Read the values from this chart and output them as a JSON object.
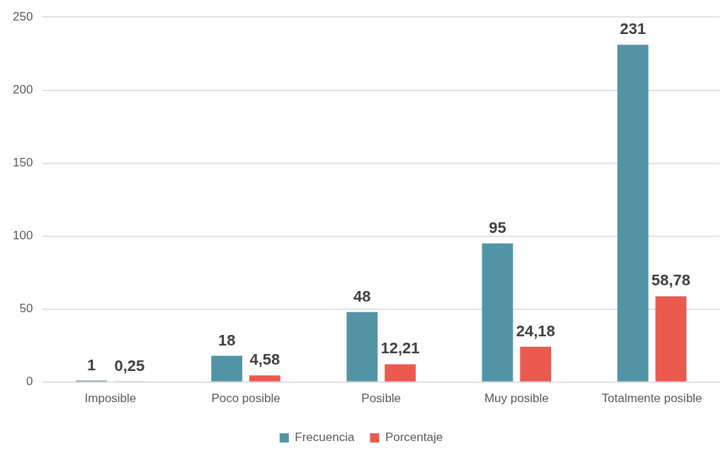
{
  "chart_data": {
    "type": "bar",
    "categories": [
      "Imposible",
      "Poco posible",
      "Posible",
      "Muy posible",
      "Totalmente posible"
    ],
    "series": [
      {
        "name": "Frecuencia",
        "color": "#5294a5",
        "values": [
          1,
          18,
          48,
          95,
          231
        ],
        "value_labels": [
          "1",
          "18",
          "48",
          "95",
          "231"
        ]
      },
      {
        "name": "Porcentaje",
        "color": "#eb5a4f",
        "values": [
          0.25,
          4.58,
          12.21,
          24.18,
          58.78
        ],
        "value_labels": [
          "0,25",
          "4,58",
          "12,21",
          "24,18",
          "58,78"
        ]
      }
    ],
    "ylim": [
      0,
      250
    ],
    "yticks": [
      0,
      50,
      100,
      150,
      200,
      250
    ],
    "grid": "y",
    "legend": "bottom"
  }
}
